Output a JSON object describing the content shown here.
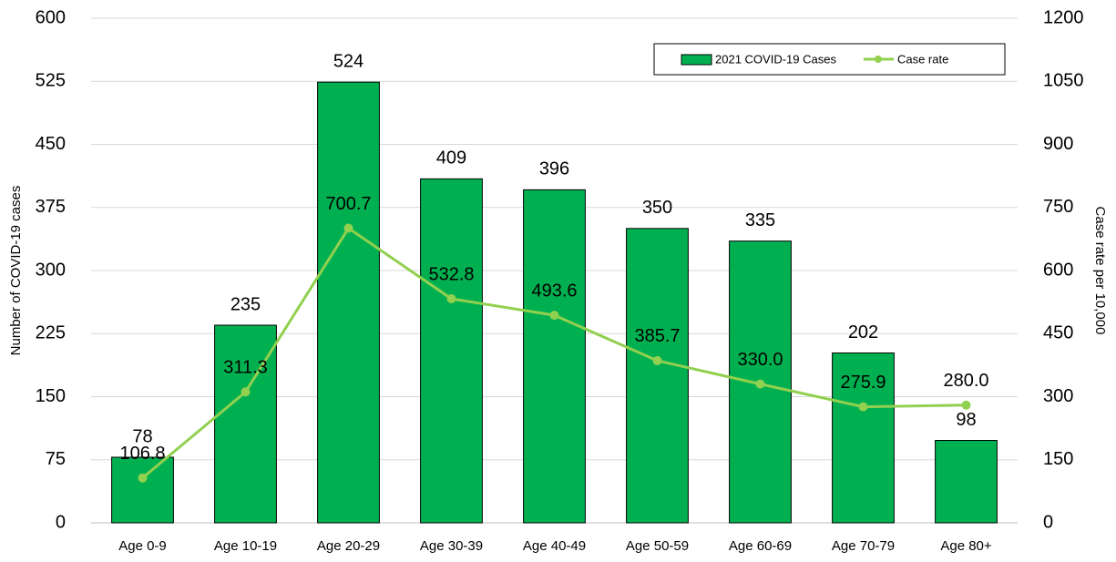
{
  "chart_data": {
    "type": "combo",
    "categories": [
      "Age 0-9",
      "Age 10-19",
      "Age 20-29",
      "Age 30-39",
      "Age 40-49",
      "Age 50-59",
      "Age 60-69",
      "Age 70-79",
      "Age 80+"
    ],
    "series": [
      {
        "name": "2021 COVID-19 Cases",
        "type": "bar",
        "color": "#00b050",
        "values": [
          78,
          235,
          524,
          409,
          396,
          350,
          335,
          202,
          98
        ]
      },
      {
        "name": "Case rate",
        "type": "line",
        "axis": "y2",
        "color": "#92d050",
        "values": [
          106.8,
          311.3,
          700.7,
          532.8,
          493.6,
          385.7,
          330.0,
          275.9,
          280.0
        ],
        "value_labels": [
          "106.8",
          "311.3",
          "700.7",
          "532.8",
          "493.6",
          "385.7",
          "330.0",
          "275.9",
          "280.0"
        ]
      }
    ],
    "ylabel": "Number of COVID-19 cases",
    "y2label": "Case rate per 10,000",
    "ylim": [
      0,
      600
    ],
    "yticks": [
      0,
      75,
      150,
      225,
      300,
      375,
      450,
      525,
      600
    ],
    "y2lim": [
      0,
      1200
    ],
    "y2ticks": [
      0,
      150,
      300,
      450,
      600,
      750,
      900,
      1050,
      1200
    ],
    "grid": true,
    "legend": "top-right"
  }
}
